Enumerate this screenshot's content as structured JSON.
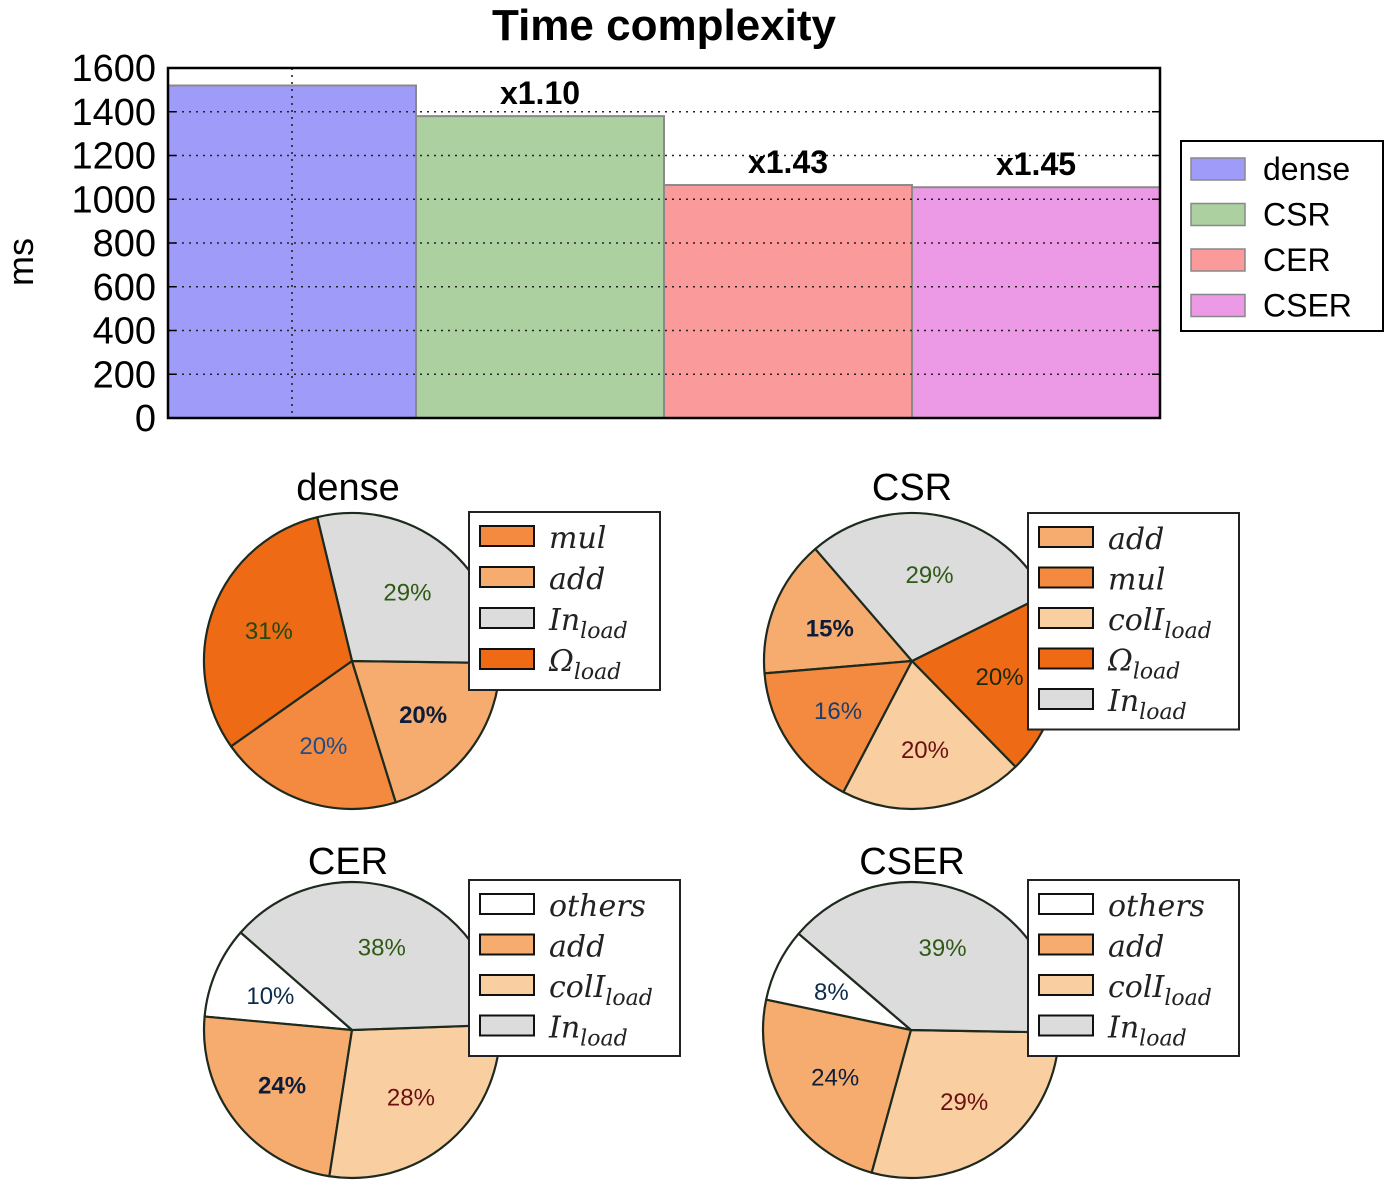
{
  "chart_data": [
    {
      "type": "bar",
      "title": "Time complexity",
      "xlabel": "",
      "ylabel": "ms",
      "ylim": [
        0,
        1600
      ],
      "yticks": [
        0,
        200,
        400,
        600,
        800,
        1000,
        1200,
        1400,
        1600
      ],
      "grid": true,
      "legend_position": "right",
      "categories": [
        "dense",
        "CSR",
        "CER",
        "CSER"
      ],
      "values": [
        1520,
        1380,
        1065,
        1055
      ],
      "colors": [
        "#9e9cf8",
        "#acd0a0",
        "#fa9a9a",
        "#ec9ae6"
      ],
      "annotations": [
        "",
        "x1.10",
        "x1.43",
        "x1.45"
      ]
    },
    {
      "type": "pie",
      "title": "dense",
      "slices": [
        {
          "label": "mul",
          "sub": "",
          "value": 20,
          "text": "20%",
          "color": "#f48a3f",
          "text_color": "#1d4e8a",
          "bold": false
        },
        {
          "label": "add",
          "sub": "",
          "value": 20,
          "text": "20%",
          "color": "#f6ab6f",
          "text_color": "#0c1d3a",
          "bold": true
        },
        {
          "label": "In",
          "sub": "load",
          "value": 29,
          "text": "29%",
          "color": "#dcdcdc",
          "text_color": "#2e5a14",
          "bold": false
        },
        {
          "label": "Ω",
          "sub": "load",
          "value": 31,
          "text": "31%",
          "color": "#ee6a14",
          "text_color": "#1e4a10",
          "bold": false
        }
      ]
    },
    {
      "type": "pie",
      "title": "CSR",
      "slices": [
        {
          "label": "add",
          "sub": "",
          "value": 15,
          "text": "15%",
          "color": "#f6ab6f",
          "text_color": "#0c1d3a",
          "bold": true
        },
        {
          "label": "mul",
          "sub": "",
          "value": 16,
          "text": "16%",
          "color": "#f48a3f",
          "text_color": "#1d3e6a",
          "bold": false
        },
        {
          "label": "colI",
          "sub": "load",
          "value": 20,
          "text": "20%",
          "color": "#f9cfa2",
          "text_color": "#6a1010",
          "bold": false
        },
        {
          "label": "Ω",
          "sub": "load",
          "value": 20,
          "text": "20%",
          "color": "#ee6a14",
          "text_color": "#1a2a10",
          "bold": false
        },
        {
          "label": "In",
          "sub": "load",
          "value": 29,
          "text": "29%",
          "color": "#dcdcdc",
          "text_color": "#2e5a14",
          "bold": false
        }
      ]
    },
    {
      "type": "pie",
      "title": "CER",
      "slices": [
        {
          "label": "others",
          "sub": "",
          "value": 10,
          "text": "10%",
          "color": "#ffffff",
          "text_color": "#0c2a4a",
          "bold": false
        },
        {
          "label": "add",
          "sub": "",
          "value": 24,
          "text": "24%",
          "color": "#f6ab6f",
          "text_color": "#0c1d3a",
          "bold": true
        },
        {
          "label": "colI",
          "sub": "load",
          "value": 28,
          "text": "28%",
          "color": "#f9cfa2",
          "text_color": "#6a1010",
          "bold": false
        },
        {
          "label": "In",
          "sub": "load",
          "value": 38,
          "text": "38%",
          "color": "#dcdcdc",
          "text_color": "#2e5a14",
          "bold": false
        }
      ]
    },
    {
      "type": "pie",
      "title": "CSER",
      "slices": [
        {
          "label": "others",
          "sub": "",
          "value": 8,
          "text": "8%",
          "color": "#ffffff",
          "text_color": "#0c2a4a",
          "bold": false
        },
        {
          "label": "add",
          "sub": "",
          "value": 24,
          "text": "24%",
          "color": "#f6ab6f",
          "text_color": "#0c1d3a",
          "bold": false
        },
        {
          "label": "colI",
          "sub": "load",
          "value": 29,
          "text": "29%",
          "color": "#f9cfa2",
          "text_color": "#6a1010",
          "bold": false
        },
        {
          "label": "In",
          "sub": "load",
          "value": 39,
          "text": "39%",
          "color": "#dcdcdc",
          "text_color": "#2e5a14",
          "bold": false
        }
      ]
    }
  ]
}
